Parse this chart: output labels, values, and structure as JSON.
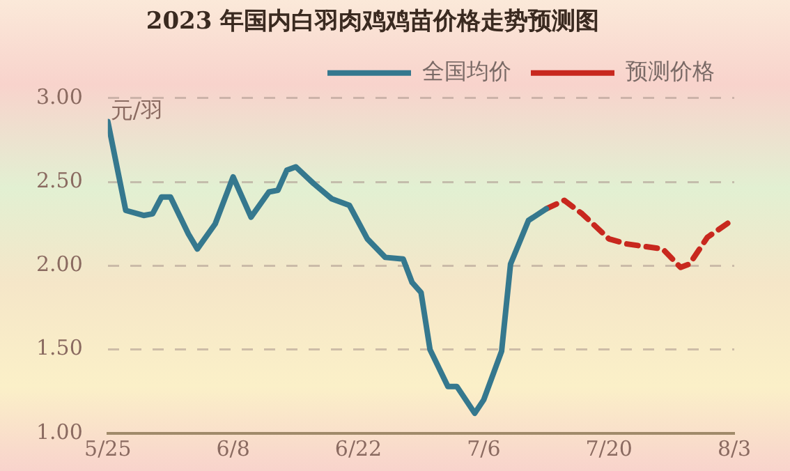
{
  "chart_data": {
    "type": "line",
    "title": "2023 年国内白羽肉鸡鸡苗价格走势预测图",
    "ylabel": "元/羽",
    "xlim": [
      "--05-25",
      "--08-03"
    ],
    "xticks": [
      {
        "value": "--05-25",
        "label": "5/25"
      },
      {
        "value": "--06-08",
        "label": "6/8"
      },
      {
        "value": "--06-22",
        "label": "6/22"
      },
      {
        "value": "--07-06",
        "label": "7/6"
      },
      {
        "value": "--07-20",
        "label": "7/20"
      },
      {
        "value": "--08-03",
        "label": "8/3"
      }
    ],
    "ylim": [
      1,
      3
    ],
    "yticks": [
      {
        "value": 1,
        "label": "1.00"
      },
      {
        "value": 1.5,
        "label": "1.50"
      },
      {
        "value": 2,
        "label": "2.00"
      },
      {
        "value": 2.5,
        "label": "2.50"
      },
      {
        "value": 3,
        "label": "3.00"
      }
    ],
    "grid": "y",
    "legend": "top right",
    "marker": "none",
    "series": [
      {
        "name": "全国均价",
        "color": "#35788e",
        "line_style": "solid",
        "x": [
          "--05-25",
          "--05-27",
          "--05-29",
          "--05-30",
          "--05-31",
          "--06-01",
          "--06-03",
          "--06-04",
          "--06-06",
          "--06-08",
          "--06-10",
          "--06-12",
          "--06-13",
          "--06-14",
          "--06-15",
          "--06-17",
          "--06-19",
          "--06-21",
          "--06-23",
          "--06-25",
          "--06-27",
          "--06-28",
          "--06-29",
          "--06-30",
          "--07-02",
          "--07-03",
          "--07-05",
          "--07-06",
          "--07-08",
          "--07-09",
          "--07-11",
          "--07-13"
        ],
        "values": [
          2.86,
          2.33,
          2.3,
          2.31,
          2.41,
          2.41,
          2.19,
          2.1,
          2.25,
          2.53,
          2.29,
          2.44,
          2.45,
          2.57,
          2.59,
          2.49,
          2.4,
          2.36,
          2.16,
          2.05,
          2.04,
          1.9,
          1.84,
          1.5,
          1.28,
          1.28,
          1.12,
          1.2,
          1.49,
          2.01,
          2.27,
          2.34
        ]
      },
      {
        "name": "预测价格",
        "color": "#c8281e",
        "line_style": "dashed",
        "x": [
          "--07-13",
          "--07-15",
          "--07-17",
          "--07-20",
          "--07-22",
          "--07-26",
          "--07-28",
          "--07-29",
          "--07-31",
          "--08-03"
        ],
        "values": [
          2.34,
          2.39,
          2.31,
          2.16,
          2.13,
          2.1,
          1.99,
          2.01,
          2.17,
          2.28
        ]
      }
    ]
  }
}
